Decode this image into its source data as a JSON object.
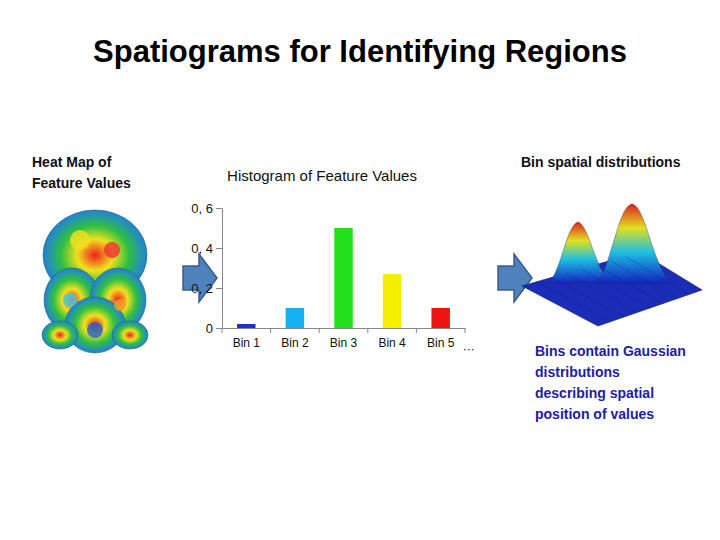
{
  "slide": {
    "title": "Spatiograms for Identifying Regions",
    "left_label": [
      "Heat Map of",
      "Feature Values"
    ],
    "right_label": "Bin spatial distributions",
    "caption": [
      "Bins contain Gaussian",
      "distributions",
      "describing spatial",
      "position of values"
    ]
  },
  "chart_data": {
    "type": "bar",
    "title": "Histogram of Feature Values",
    "categories": [
      "Bin 1",
      "Bin 2",
      "Bin 3",
      "Bin 4",
      "Bin 5"
    ],
    "values": [
      0.02,
      0.1,
      0.5,
      0.27,
      0.1
    ],
    "colors": [
      "#1c2fd0",
      "#14b0f0",
      "#22e01c",
      "#f4f000",
      "#ee1515"
    ],
    "ylim": [
      0,
      0.6
    ],
    "yticks": [
      0,
      {
        "value": 0.2,
        "label": "0, 2"
      },
      {
        "value": 0.4,
        "label": "0, 4"
      },
      {
        "value": 0.6,
        "label": "0, 6"
      }
    ],
    "annotations": [
      "···"
    ]
  }
}
